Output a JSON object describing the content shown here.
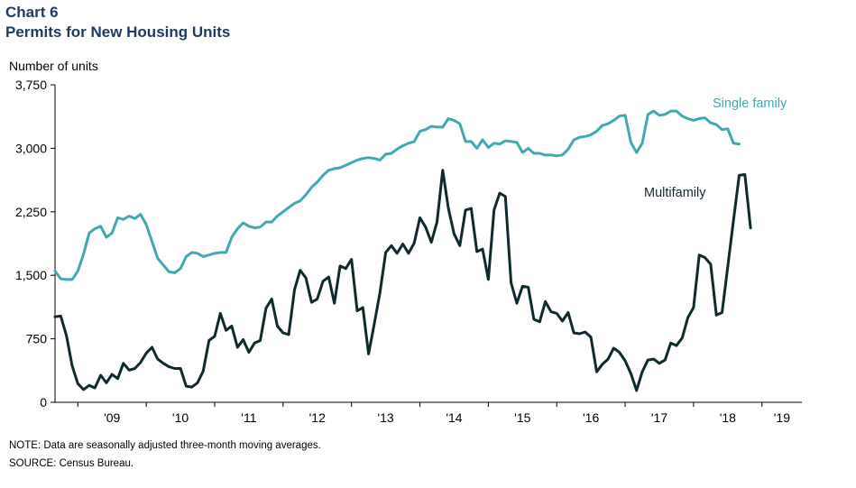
{
  "chart_number": "Chart 6",
  "chart_title": "Permits for New Housing Units",
  "note": "NOTE: Data are seasonally adjusted three-month moving averages.",
  "source": "SOURCE: Census Bureau.",
  "chart_data": {
    "type": "line",
    "title": "Permits for New Housing Units",
    "ylabel": "Number of units",
    "xlabel": "",
    "ylim": [
      0,
      3750
    ],
    "yticks": [
      "0",
      "750",
      "1,500",
      "2,250",
      "3,000",
      "3,750"
    ],
    "ytick_values": [
      0,
      750,
      1500,
      2250,
      3000,
      3750
    ],
    "x_start": "2008-09",
    "x_end": "2019-08",
    "x_tick_labels": [
      "'09",
      "'10",
      "'11",
      "'12",
      "'13",
      "'14",
      "'15",
      "'16",
      "'17",
      "'18",
      "'19"
    ],
    "grid": false,
    "series": [
      {
        "name": "Single family",
        "color": "#40a9b0",
        "start": "2008-09",
        "values": [
          1550,
          1460,
          1450,
          1450,
          1550,
          1750,
          2000,
          2050,
          2080,
          1950,
          2000,
          2180,
          2160,
          2200,
          2170,
          2220,
          2100,
          1900,
          1700,
          1620,
          1540,
          1530,
          1580,
          1720,
          1770,
          1760,
          1720,
          1740,
          1760,
          1770,
          1770,
          1950,
          2050,
          2120,
          2080,
          2060,
          2070,
          2130,
          2130,
          2200,
          2250,
          2300,
          2350,
          2380,
          2450,
          2540,
          2600,
          2680,
          2740,
          2760,
          2770,
          2800,
          2830,
          2860,
          2880,
          2890,
          2880,
          2860,
          2930,
          2940,
          2990,
          3030,
          3060,
          3080,
          3200,
          3220,
          3260,
          3250,
          3250,
          3350,
          3330,
          3290,
          3080,
          3080,
          3000,
          3100,
          3010,
          3060,
          3050,
          3090,
          3080,
          3070,
          2950,
          3000,
          2940,
          2940,
          2920,
          2920,
          2910,
          2920,
          2990,
          3100,
          3130,
          3140,
          3160,
          3200,
          3270,
          3290,
          3330,
          3380,
          3390,
          3070,
          2950,
          3060,
          3400,
          3440,
          3390,
          3400,
          3440,
          3440,
          3380,
          3350,
          3330,
          3350,
          3360,
          3300,
          3280,
          3220,
          3230,
          3060,
          3050
        ]
      },
      {
        "name": "Multifamily",
        "color": "#0f2a2d",
        "start": "2008-09",
        "values": [
          1010,
          1020,
          790,
          430,
          220,
          150,
          200,
          170,
          320,
          230,
          330,
          280,
          460,
          380,
          400,
          470,
          580,
          650,
          510,
          460,
          420,
          400,
          400,
          190,
          180,
          230,
          370,
          730,
          780,
          1050,
          850,
          900,
          650,
          740,
          590,
          700,
          730,
          1110,
          1220,
          900,
          820,
          800,
          1330,
          1560,
          1470,
          1180,
          1220,
          1430,
          1480,
          1170,
          1610,
          1580,
          1690,
          1080,
          1120,
          570,
          930,
          1300,
          1770,
          1850,
          1760,
          1870,
          1760,
          1880,
          2180,
          2070,
          1890,
          2130,
          2740,
          2290,
          1990,
          1850,
          2270,
          2290,
          1780,
          1810,
          1450,
          2270,
          2470,
          2430,
          1410,
          1170,
          1370,
          1360,
          980,
          950,
          1190,
          1070,
          1050,
          960,
          1060,
          820,
          810,
          830,
          770,
          360,
          450,
          510,
          640,
          590,
          490,
          340,
          140,
          360,
          500,
          510,
          460,
          500,
          700,
          670,
          760,
          1000,
          1120,
          1740,
          1710,
          1630,
          1030,
          1060,
          1600,
          2150,
          2680,
          2690,
          2060
        ]
      }
    ],
    "annotations": [
      {
        "text": "Single family",
        "series": "Single family"
      },
      {
        "text": "Multifamily",
        "series": "Multifamily"
      }
    ]
  }
}
